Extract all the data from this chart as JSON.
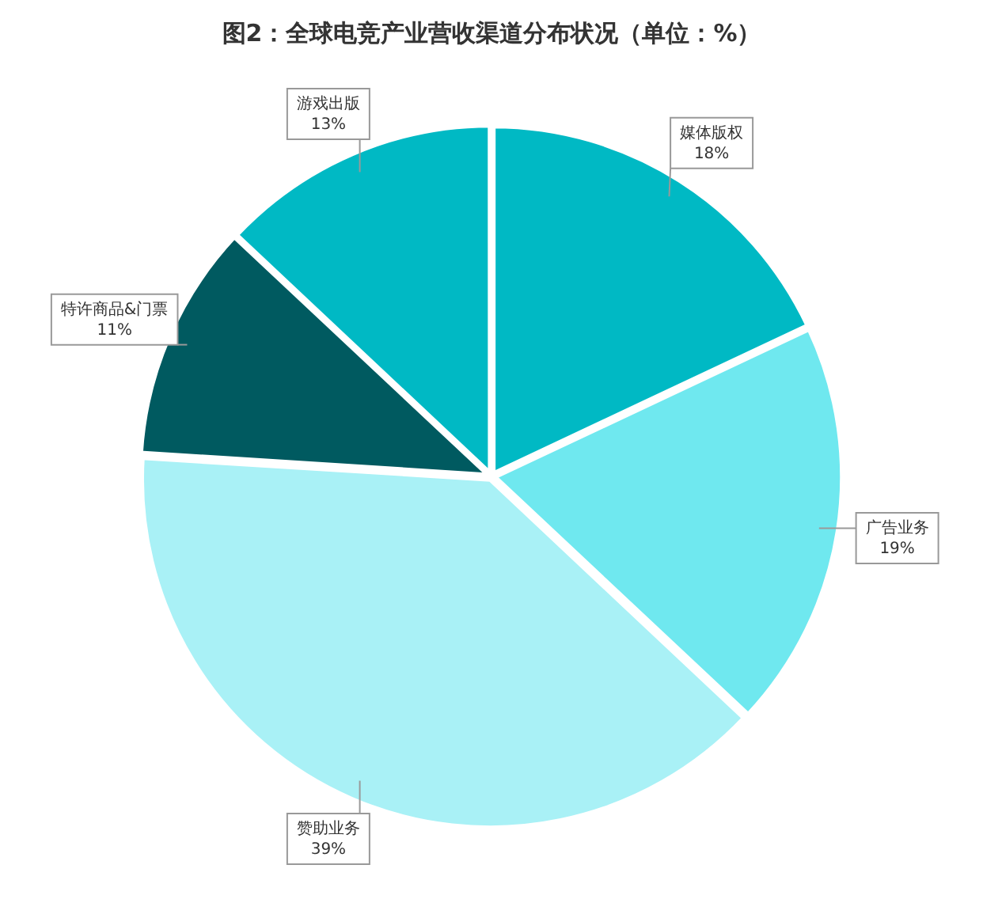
{
  "chart_data": {
    "type": "pie",
    "title": "图2：全球电竞产业营收渠道分布状况（单位：%）",
    "categories": [
      "媒体版权",
      "广告业务",
      "赞助业务",
      "特许商品&门票",
      "游戏出版"
    ],
    "values": [
      18,
      19,
      39,
      11,
      13
    ],
    "value_labels": [
      "18%",
      "19%",
      "39%",
      "11%",
      "13%"
    ],
    "colors": [
      "#00b9c4",
      "#6fe8ef",
      "#a9f1f6",
      "#005a60",
      "#00b9c4"
    ],
    "legend": false
  }
}
